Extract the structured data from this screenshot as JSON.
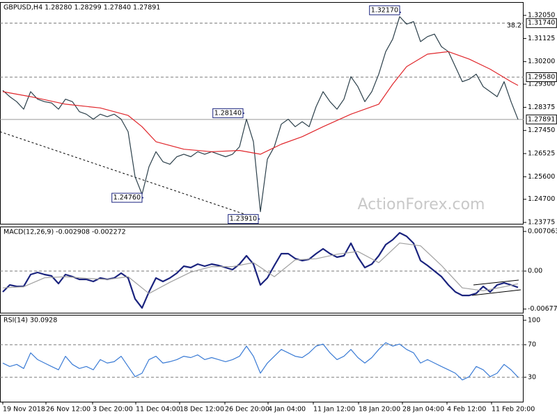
{
  "chart_data": [
    {
      "type": "line",
      "title": "GBPUSD,H4  1.28280 1.28299 1.27840 1.27891",
      "watermark": "ActionForex.com",
      "xlim": [
        -0.4,
        74.8
      ],
      "ylim": [
        1.2372,
        1.3258
      ],
      "yticks": [
        {
          "value": 1.3205,
          "label": "1.32050"
        },
        1.31125,
        {
          "value": 1.302,
          "label": "1.30200"
        },
        {
          "value": 1.293,
          "label": "1.29300"
        },
        1.28375,
        {
          "value": 1.2745,
          "label": "1.27450"
        },
        1.26525,
        {
          "value": 1.256,
          "label": "1.25600"
        },
        {
          "value": 1.247,
          "label": "1.24700"
        },
        1.23775
      ],
      "series": [
        {
          "color": "#2b3f4a",
          "values": [
            1.2905,
            1.288,
            1.286,
            1.283,
            1.29,
            1.287,
            1.286,
            1.2855,
            1.283,
            1.287,
            1.286,
            1.282,
            1.281,
            1.279,
            1.281,
            1.28,
            1.281,
            1.279,
            1.274,
            1.256,
            1.249,
            1.26,
            1.266,
            1.262,
            1.261,
            1.264,
            1.265,
            1.264,
            1.266,
            1.265,
            1.266,
            1.265,
            1.264,
            1.265,
            1.268,
            1.279,
            1.27,
            1.242,
            1.263,
            1.268,
            1.277,
            1.279,
            1.276,
            1.278,
            1.276,
            1.284,
            1.29,
            1.286,
            1.283,
            1.287,
            1.296,
            1.292,
            1.286,
            1.29,
            1.297,
            1.306,
            1.311,
            1.32,
            1.317,
            1.318,
            1.31,
            1.312,
            1.313,
            1.308,
            1.306,
            1.3,
            1.294,
            1.295,
            1.297,
            1.292,
            1.29,
            1.288,
            1.294,
            1.286,
            1.27891
          ]
        },
        {
          "color": "#e0262b",
          "x": [
            0,
            4,
            9,
            14,
            18,
            20,
            22,
            26,
            30,
            34,
            37,
            40,
            43,
            46,
            50,
            54,
            56,
            58,
            61,
            64,
            67,
            70,
            73,
            74
          ],
          "values": [
            1.29,
            1.288,
            1.285,
            1.2835,
            1.2805,
            1.276,
            1.27,
            1.267,
            1.266,
            1.2665,
            1.265,
            1.269,
            1.272,
            1.276,
            1.281,
            1.285,
            1.293,
            1.3,
            1.305,
            1.306,
            1.303,
            1.299,
            1.294,
            1.2925
          ]
        }
      ],
      "trendline": {
        "color": "#000000",
        "x": [
          -0.4,
          36.8
        ],
        "values": [
          1.274,
          1.2391
        ]
      },
      "hlines": [
        {
          "value": 1.3174,
          "label": "1.31740",
          "tag": "38.2",
          "style": "dashed"
        },
        {
          "value": 1.2958,
          "label": "1.29580",
          "style": "dashed"
        },
        {
          "value": 1.27891,
          "label": "1.27891",
          "style": "solid"
        }
      ],
      "annotations": [
        {
          "x": 57.1,
          "value": 1.3217,
          "label": "1.32170"
        },
        {
          "x": 34.6,
          "value": 1.2814,
          "label": "1.28140"
        },
        {
          "x": 20.1,
          "value": 1.2476,
          "label": "1.24760"
        },
        {
          "x": 36.8,
          "value": 1.2391,
          "label": "1.23910"
        }
      ]
    },
    {
      "type": "line",
      "title": "MACD(12,26,9) -0.002908 -0.002272",
      "xlim": [
        -0.4,
        74.8
      ],
      "ylim": [
        -0.00743,
        0.00793
      ],
      "yticks": [
        0.007063,
        {
          "value": 0,
          "label": "0.00"
        },
        -0.006774
      ],
      "series": [
        {
          "color": "#1a237e",
          "width": 2.2,
          "values": [
            -0.00372,
            -0.00248,
            -0.00273,
            -0.00273,
            -0.00062,
            -0.00025,
            -0.00062,
            -0.00087,
            -0.00223,
            -0.00062,
            -0.00099,
            -0.00149,
            -0.00149,
            -0.00186,
            -0.00124,
            -0.00149,
            -0.00124,
            -0.00037,
            -0.00124,
            -0.00496,
            -0.00657,
            -0.00372,
            -0.00124,
            -0.00186,
            -0.00124,
            -0.00037,
            0.00087,
            0.00062,
            0.00124,
            0.00087,
            0.00124,
            0.00099,
            0.00062,
            0.00025,
            0.00124,
            0.00273,
            0.00124,
            -0.00248,
            -0.00124,
            0.00099,
            0.0031,
            0.0031,
            0.00223,
            0.00186,
            0.00211,
            0.0031,
            0.00397,
            0.0031,
            0.00248,
            0.00273,
            0.00496,
            0.00248,
            0.00062,
            0.00124,
            0.00273,
            0.00471,
            0.00558,
            0.00682,
            0.0062,
            0.00496,
            0.00186,
            0.00099,
            0,
            -0.00099,
            -0.00248,
            -0.00372,
            -0.00434,
            -0.00434,
            -0.00397,
            -0.00273,
            -0.00372,
            -0.00248,
            -0.00211,
            -0.00248,
            -0.00291
          ]
        },
        {
          "color": "#a0a0a0",
          "x": [
            0,
            3,
            6,
            9,
            12,
            15,
            18,
            21,
            24,
            27,
            30,
            33,
            36,
            39,
            42,
            45,
            48,
            51,
            54,
            57,
            60,
            63,
            66,
            69,
            72,
            74
          ],
          "values": [
            -0.003,
            -0.0028,
            -0.0012,
            -0.001,
            -0.0013,
            -0.0015,
            -0.001,
            -0.004,
            -0.002,
            -0.0002,
            0.0008,
            0.0008,
            0.0015,
            -0.001,
            0.002,
            0.0022,
            0.003,
            0.0035,
            0.0015,
            0.005,
            0.0045,
            0.001,
            -0.003,
            -0.0035,
            -0.0028,
            -0.00227
          ]
        }
      ],
      "hlines": [
        {
          "value": 0,
          "style": "dashed"
        }
      ]
    },
    {
      "type": "line",
      "title": "RSI(14) 30.0928",
      "xlim": [
        -0.4,
        74.8
      ],
      "ylim": [
        0,
        106.7
      ],
      "yticks": [
        100,
        70,
        30
      ],
      "series": [
        {
          "color": "#3a7bd5",
          "values": [
            47.5,
            43.3,
            45.8,
            40.8,
            60,
            51.7,
            47.5,
            43.3,
            39.2,
            55.8,
            45.8,
            40.8,
            43.3,
            39.2,
            51.7,
            47.5,
            49.2,
            55.8,
            43.3,
            30.8,
            35,
            51.7,
            55.8,
            47.5,
            49.2,
            51.7,
            55.8,
            54.2,
            57.5,
            51.7,
            54.2,
            51.7,
            49.2,
            51.7,
            55.8,
            68.3,
            55.8,
            35,
            47.5,
            55.8,
            64.2,
            60,
            55.8,
            54.2,
            60,
            68.3,
            70.8,
            60,
            51.7,
            55.8,
            64.2,
            54.2,
            47.5,
            54.2,
            64.2,
            72.5,
            68.3,
            70.8,
            64.2,
            60,
            47.5,
            51.7,
            47.5,
            43.3,
            39.2,
            35,
            26.7,
            30.8,
            43.3,
            39.2,
            30.8,
            35,
            45.8,
            39.2,
            30.09
          ]
        }
      ],
      "hlines": [
        {
          "value": 70,
          "style": "dashed"
        },
        {
          "value": 30,
          "style": "dashed"
        }
      ],
      "xticks": [
        {
          "value": 0,
          "label": "19 Nov 2018"
        },
        {
          "value": 6.2,
          "label": "26 Nov 12:00"
        },
        {
          "value": 12.9,
          "label": "3 Dec 20:00"
        },
        {
          "value": 19.1,
          "label": "11 Dec 04:00"
        },
        {
          "value": 25.4,
          "label": "18 Dec 12:00"
        },
        {
          "value": 31.9,
          "label": "26 Dec 20:00"
        },
        {
          "value": 38.1,
          "label": "4 Jan 04:00"
        },
        {
          "value": 44.6,
          "label": "11 Jan 12:00"
        },
        {
          "value": 51.1,
          "label": "18 Jan 20:00"
        },
        {
          "value": 57.4,
          "label": "28 Jan 04:00"
        },
        {
          "value": 63.8,
          "label": "4 Feb 12:00"
        },
        {
          "value": 70.2,
          "label": "11 Feb 20:00"
        }
      ]
    }
  ]
}
